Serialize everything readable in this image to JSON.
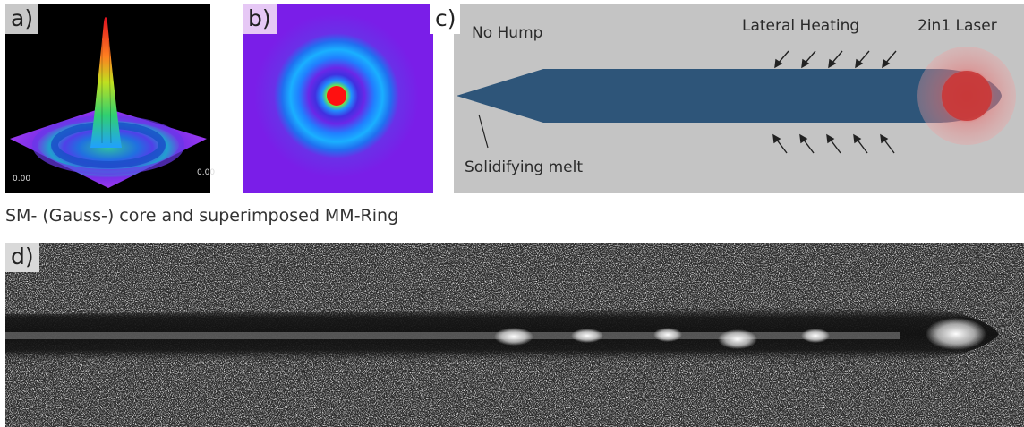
{
  "panels": {
    "a": {
      "letter": "a)",
      "tick_left": "0.00",
      "tick_right": "0.00"
    },
    "b": {
      "letter": "b)"
    },
    "c": {
      "letter": "c)",
      "no_hump": "No Hump",
      "lateral_heating": "Lateral Heating",
      "laser": "2in1 Laser",
      "solidifying_melt": "Solidifying melt"
    },
    "d": {
      "letter": "d)"
    }
  },
  "caption": "SM- (Gauss-) core and superimposed MM-Ring",
  "colors": {
    "melt_pool": "#2e5579",
    "panel_c_bg": "#c4c4c4",
    "laser_ring": "#e06060",
    "beam_ring": "#1f8fff",
    "beam_core": "#ff1010"
  }
}
